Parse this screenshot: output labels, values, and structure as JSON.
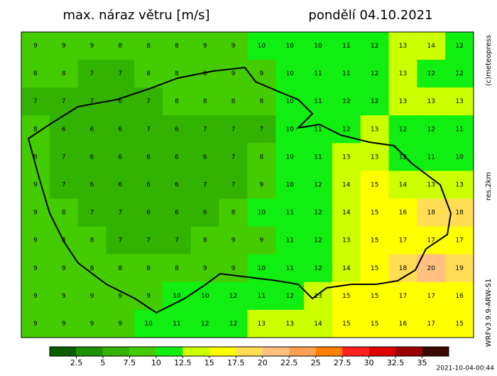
{
  "header": {
    "title": "max. náraz větru [m/s]",
    "date": "pondělí 04.10.2021"
  },
  "side_labels": {
    "copyright": "(c)meteopress",
    "resolution": "res.2km",
    "model": "WRFv3.9.9-ARW-S1"
  },
  "timestamp": "2021-10-04-00:44",
  "colorbar": {
    "levels": [
      2.5,
      5,
      7.5,
      10,
      12.5,
      15,
      17.5,
      20,
      22.5,
      25,
      27.5,
      30,
      32.5,
      35
    ],
    "colors": [
      "#0b5e00",
      "#1e8f00",
      "#33b300",
      "#44cc00",
      "#11ee11",
      "#ccff00",
      "#ffff00",
      "#ffdd55",
      "#ffc080",
      "#ffa050",
      "#ff7f00",
      "#ff2020",
      "#dd0000",
      "#990000",
      "#3a0a00"
    ]
  },
  "grid": {
    "rows": [
      [
        9,
        9,
        9,
        8,
        8,
        8,
        9,
        9,
        10,
        10,
        10,
        11,
        12,
        13,
        14,
        12
      ],
      [
        8,
        8,
        7,
        7,
        8,
        8,
        8,
        9,
        9,
        10,
        11,
        11,
        12,
        13,
        12,
        12
      ],
      [
        7,
        7,
        7,
        6,
        7,
        8,
        8,
        8,
        8,
        10,
        11,
        12,
        12,
        13,
        13,
        13
      ],
      [
        8,
        6,
        6,
        6,
        7,
        6,
        7,
        7,
        7,
        10,
        11,
        12,
        13,
        12,
        12,
        11
      ],
      [
        8,
        7,
        6,
        6,
        6,
        6,
        6,
        7,
        8,
        10,
        11,
        13,
        13,
        12,
        11,
        10
      ],
      [
        9,
        7,
        6,
        6,
        6,
        6,
        7,
        7,
        9,
        10,
        12,
        14,
        15,
        14,
        13,
        13
      ],
      [
        9,
        8,
        7,
        7,
        6,
        6,
        6,
        8,
        10,
        11,
        12,
        14,
        15,
        16,
        18,
        18
      ],
      [
        9,
        8,
        8,
        7,
        7,
        7,
        8,
        9,
        9,
        11,
        12,
        13,
        15,
        17,
        17,
        17
      ],
      [
        9,
        9,
        8,
        8,
        8,
        8,
        9,
        9,
        10,
        11,
        12,
        14,
        15,
        18,
        20,
        19
      ],
      [
        9,
        9,
        9,
        9,
        9,
        10,
        10,
        12,
        11,
        12,
        13,
        15,
        15,
        17,
        17,
        16
      ],
      [
        9,
        9,
        9,
        9,
        10,
        11,
        12,
        12,
        13,
        13,
        14,
        15,
        15,
        16,
        17,
        15
      ]
    ]
  }
}
